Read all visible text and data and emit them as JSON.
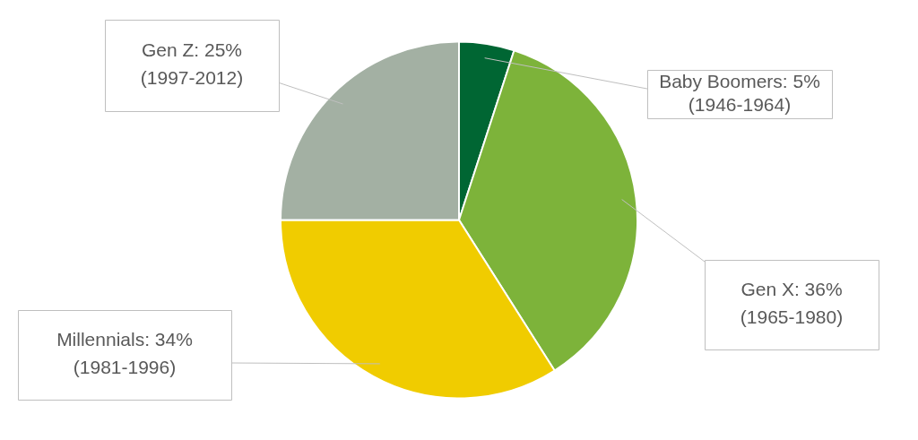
{
  "chart_data": {
    "type": "pie",
    "categories": [
      "Baby Boomers: 5%\n(1946-1964)",
      "Gen X: 36%\n(1965-1980)",
      "Millennials: 34%\n(1981-1996)",
      "Gen Z: 25%\n(1997-2012)"
    ],
    "values": [
      5,
      36,
      34,
      25
    ],
    "colors": [
      "#006633",
      "#7db33a",
      "#f0cc00",
      "#a3b0a3"
    ],
    "legend": false
  }
}
